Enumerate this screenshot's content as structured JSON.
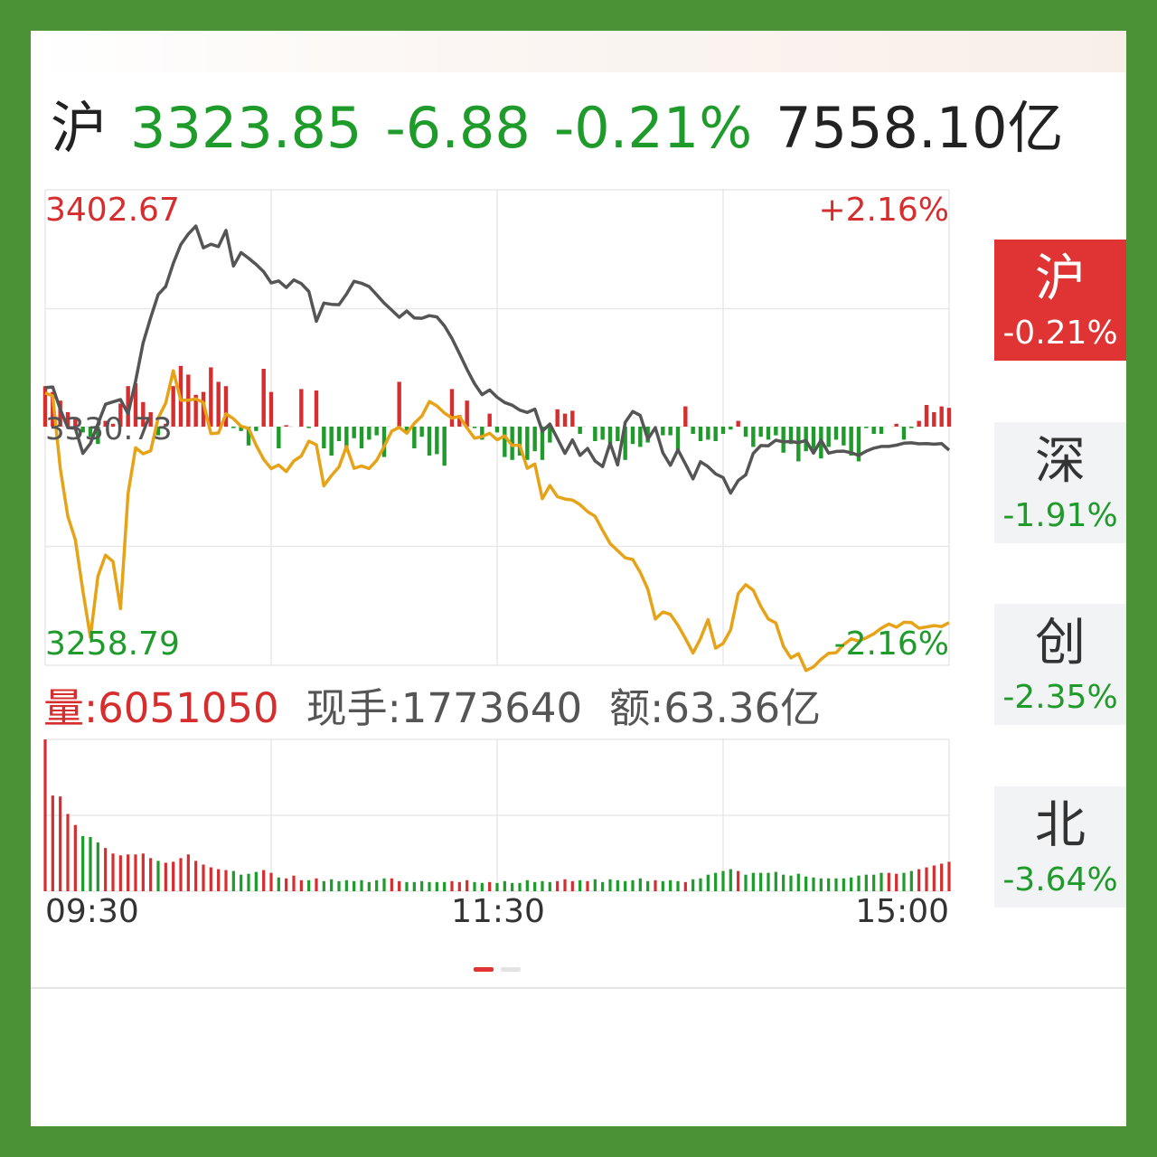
{
  "header": {
    "name": "沪",
    "price": "3323.85",
    "change": "-6.88",
    "change_pct": "-0.21%",
    "amount": "7558.10亿"
  },
  "colors": {
    "up": "#d62e2e",
    "down": "#1e9b2a",
    "index_line": "#555555",
    "avg_line": "#e6a318",
    "grid": "#e8e8e8",
    "active_tab": "#e03333",
    "frame": "#4a9235"
  },
  "volume_line": {
    "vol_label": "量:",
    "vol_value": "6051050",
    "hand_label": "现手:1773640",
    "amount_label": "额:63.36亿"
  },
  "tabs": [
    {
      "name": "沪",
      "pct": "-0.21%",
      "active": true
    },
    {
      "name": "深",
      "pct": "-1.91%",
      "active": false
    },
    {
      "name": "创",
      "pct": "-2.35%",
      "active": false
    },
    {
      "name": "北",
      "pct": "-3.64%",
      "active": false
    }
  ],
  "chart_data": [
    {
      "type": "line",
      "y_max_label": "3402.67",
      "y_min_label": "3258.79",
      "y_ref_label": "3330.73",
      "pct_max_label": "+2.16%",
      "pct_min_label": "-2.16%",
      "ylim": [
        3258.79,
        3402.67
      ],
      "x_ticks": [
        "09:30",
        "11:30",
        "15:00"
      ],
      "grid": true,
      "series": [
        {
          "role": "index",
          "x": [
            0,
            2,
            4,
            6,
            8,
            10,
            12,
            14,
            16,
            18,
            20,
            22,
            24,
            26,
            28,
            30,
            32,
            34,
            36,
            38,
            40,
            42,
            44,
            46,
            48,
            50,
            52,
            54,
            56,
            58,
            60,
            62,
            64,
            66,
            68,
            70,
            72,
            74,
            76,
            78,
            80,
            82,
            84,
            86,
            88,
            90,
            92,
            94,
            96,
            98,
            100,
            102,
            104,
            106,
            108,
            110,
            112,
            114,
            116,
            118,
            120,
            122,
            124,
            126,
            128,
            130,
            132,
            134,
            136,
            138,
            140,
            142,
            144,
            146,
            148,
            150,
            152,
            154,
            156,
            158,
            160,
            162,
            164,
            166,
            168,
            170,
            172,
            174,
            176,
            178,
            180,
            182,
            184,
            186,
            188,
            190,
            192,
            194,
            196,
            198,
            200,
            202,
            204,
            206,
            208,
            210,
            212,
            214,
            216,
            218,
            220,
            222,
            224,
            226,
            228,
            230,
            232,
            234,
            236,
            238,
            240
          ],
          "values": [
            3342.8,
            3343.0,
            3336.2,
            3330.7,
            3330.5,
            3322.9,
            3325.9,
            3331.8,
            3337.8,
            3338.5,
            3339.2,
            3334.9,
            3344.8,
            3356.3,
            3364.0,
            3371.0,
            3373.4,
            3380.4,
            3386.1,
            3389.3,
            3391.7,
            3385.1,
            3386.2,
            3385.5,
            3390.4,
            3379.6,
            3383.7,
            3382.0,
            3380.1,
            3377.9,
            3374.5,
            3375.1,
            3373.1,
            3375.4,
            3374.3,
            3371.9,
            3362.9,
            3368.4,
            3368.0,
            3367.9,
            3371.1,
            3375.0,
            3374.4,
            3373.4,
            3370.9,
            3368.4,
            3366.3,
            3364.1,
            3366.0,
            3363.9,
            3363.8,
            3364.6,
            3364.2,
            3361.5,
            3357.7,
            3353.1,
            3348.3,
            3344.0,
            3340.7,
            3342.1,
            3339.9,
            3338.3,
            3337.5,
            3336.0,
            3335.3,
            3336.3,
            3329.6,
            3331.8,
            3327.4,
            3322.9,
            3327.0,
            3322.3,
            3324.4,
            3320.6,
            3318.9,
            3326.0,
            3319.4,
            3332.3,
            3335.6,
            3334.4,
            3327.2,
            3330.7,
            3323.1,
            3319.3,
            3324.0,
            3319.7,
            3315.2,
            3320.4,
            3318.9,
            3316.7,
            3315.6,
            3310.9,
            3314.7,
            3316.4,
            3322.9,
            3325.3,
            3325.2,
            3326.9,
            3326.4,
            3326.5,
            3326.2,
            3326.8,
            3323.0,
            3326.9,
            3323.0,
            3323.5,
            3323.6,
            3323.1,
            3322.3,
            3323.6,
            3324.5,
            3325.0,
            3325.0,
            3325.4,
            3326.0,
            3326.1,
            3325.8,
            3325.9,
            3325.7,
            3325.9,
            3323.9
          ]
        },
        {
          "role": "average",
          "x": [
            0,
            2,
            4,
            6,
            8,
            10,
            12,
            14,
            16,
            18,
            20,
            22,
            24,
            26,
            28,
            30,
            32,
            34,
            36,
            38,
            40,
            42,
            44,
            46,
            48,
            50,
            52,
            54,
            56,
            58,
            60,
            62,
            64,
            66,
            68,
            70,
            72,
            74,
            76,
            78,
            80,
            82,
            84,
            86,
            88,
            90,
            92,
            94,
            96,
            98,
            100,
            102,
            104,
            106,
            108,
            110,
            112,
            114,
            116,
            118,
            120,
            122,
            124,
            126,
            128,
            130,
            132,
            134,
            136,
            138,
            140,
            142,
            144,
            146,
            148,
            150,
            152,
            154,
            156,
            158,
            160,
            162,
            164,
            166,
            168,
            170,
            172,
            174,
            176,
            178,
            180,
            182,
            184,
            186,
            188,
            190,
            192,
            194,
            196,
            198,
            200,
            202,
            204,
            206,
            208,
            210,
            212,
            214,
            216,
            218,
            220,
            222,
            224,
            226,
            228,
            230,
            232,
            234,
            236,
            238,
            240
          ],
          "values": [
            3341.2,
            3340.3,
            3318.3,
            3303.9,
            3296.8,
            3281.3,
            3267.3,
            3285.7,
            3292.1,
            3290.2,
            3275.9,
            3310.8,
            3324.6,
            3322.8,
            3323.7,
            3333.6,
            3338.1,
            3347.9,
            3339.0,
            3339.0,
            3339.4,
            3338.3,
            3328.9,
            3329.1,
            3334.9,
            3333.4,
            3331.1,
            3330.5,
            3325.4,
            3321.1,
            3318.3,
            3319.4,
            3317.4,
            3320.6,
            3322.1,
            3326.6,
            3325.5,
            3313.1,
            3316.2,
            3318.8,
            3325.0,
            3318.4,
            3319.1,
            3318.3,
            3320.8,
            3325.0,
            3329.6,
            3330.8,
            3329.0,
            3332.0,
            3334.2,
            3338.6,
            3337.3,
            3335.1,
            3333.6,
            3334.1,
            3330.6,
            3327.5,
            3328.0,
            3329.0,
            3327.0,
            3328.2,
            3325.3,
            3325.4,
            3318.4,
            3319.7,
            3309.2,
            3313.2,
            3309.8,
            3309.1,
            3308.8,
            3307.4,
            3305.3,
            3303.9,
            3299.6,
            3295.6,
            3293.5,
            3291.3,
            3290.8,
            3286.9,
            3281.8,
            3272.8,
            3274.9,
            3274.2,
            3270.9,
            3266.9,
            3262.5,
            3266.9,
            3272.6,
            3264.0,
            3265.4,
            3269.5,
            3280.5,
            3283.2,
            3281.5,
            3276.6,
            3272.8,
            3271.6,
            3264.5,
            3261.0,
            3262.3,
            3257.2,
            3258.3,
            3260.6,
            3262.4,
            3262.6,
            3265.0,
            3266.8,
            3266.1,
            3267.1,
            3268.3,
            3270.0,
            3271.3,
            3270.3,
            3271.8,
            3271.7,
            3270.0,
            3270.4,
            3270.8,
            3270.5,
            3271.7
          ]
        }
      ]
    },
    {
      "type": "bar",
      "role": "flow",
      "x": [
        0,
        2,
        4,
        6,
        8,
        10,
        12,
        14,
        16,
        18,
        20,
        22,
        24,
        26,
        28,
        30,
        32,
        34,
        36,
        38,
        40,
        42,
        44,
        46,
        48,
        50,
        52,
        54,
        56,
        58,
        60,
        62,
        64,
        66,
        68,
        70,
        72,
        74,
        76,
        78,
        80,
        82,
        84,
        86,
        88,
        90,
        92,
        94,
        96,
        98,
        100,
        102,
        104,
        106,
        108,
        110,
        112,
        114,
        116,
        118,
        120,
        122,
        124,
        126,
        128,
        130,
        132,
        134,
        136,
        138,
        140,
        142,
        144,
        146,
        148,
        150,
        152,
        154,
        156,
        158,
        160,
        162,
        164,
        166,
        168,
        170,
        172,
        174,
        176,
        178,
        180,
        182,
        184,
        186,
        188,
        190,
        192,
        194,
        196,
        198,
        200,
        202,
        204,
        206,
        208,
        210,
        212,
        214,
        216,
        218,
        220,
        222,
        224,
        226,
        228,
        230,
        232,
        234,
        236,
        238,
        240
      ],
      "values": [
        28,
        24,
        18,
        10,
        6,
        -4,
        -7,
        -12,
        4,
        2,
        16,
        28,
        30,
        17,
        10,
        -6,
        2,
        28,
        42,
        36,
        22,
        24,
        41,
        31,
        28,
        -1,
        -3,
        -13,
        -3,
        40,
        24,
        -15,
        1,
        0,
        26,
        -1,
        25,
        -15,
        -20,
        -10,
        -15,
        -8,
        -15,
        -9,
        -6,
        -21,
        0,
        31,
        -5,
        -15,
        -7,
        -20,
        -19,
        -27,
        26,
        8,
        18,
        -1,
        -9,
        9,
        -4,
        -21,
        -23,
        -20,
        -23,
        -17,
        -23,
        -11,
        12,
        9,
        11,
        -5,
        0,
        -10,
        -9,
        -12,
        -10,
        -23,
        -12,
        -14,
        -11,
        0,
        -6,
        -6,
        -16,
        14,
        -5,
        -10,
        -9,
        -10,
        -5,
        -2,
        4,
        -7,
        -14,
        -7,
        -9,
        -6,
        -18,
        -12,
        -24,
        -17,
        -18,
        -22,
        -14,
        -9,
        -13,
        -20,
        -24,
        -1,
        -5,
        -5,
        0,
        2,
        -9,
        -1,
        4,
        15,
        10,
        14,
        13
      ]
    },
    {
      "type": "bar",
      "role": "volume",
      "x": [
        0,
        2,
        4,
        6,
        8,
        10,
        12,
        14,
        16,
        18,
        20,
        22,
        24,
        26,
        28,
        30,
        32,
        34,
        36,
        38,
        40,
        42,
        44,
        46,
        48,
        50,
        52,
        54,
        56,
        58,
        60,
        62,
        64,
        66,
        68,
        70,
        72,
        74,
        76,
        78,
        80,
        82,
        84,
        86,
        88,
        90,
        92,
        94,
        96,
        98,
        100,
        102,
        104,
        106,
        108,
        110,
        112,
        114,
        116,
        118,
        120,
        122,
        124,
        126,
        128,
        130,
        132,
        134,
        136,
        138,
        140,
        142,
        144,
        146,
        148,
        150,
        152,
        154,
        156,
        158,
        160,
        162,
        164,
        166,
        168,
        170,
        172,
        174,
        176,
        178,
        180,
        182,
        184,
        186,
        188,
        190,
        192,
        194,
        196,
        198,
        200,
        202,
        204,
        206,
        208,
        210,
        212,
        214,
        216,
        218,
        220,
        222,
        224,
        226,
        228,
        230,
        232,
        234,
        236,
        238,
        240
      ],
      "values": [
        165,
        104,
        103,
        84,
        72,
        60,
        59,
        53,
        47,
        41,
        39,
        40,
        40,
        41,
        36,
        33,
        31,
        32,
        36,
        40,
        33,
        29,
        26,
        24,
        23,
        22,
        18,
        19,
        21,
        23,
        20,
        15,
        14,
        17,
        12,
        12,
        14,
        11,
        13,
        11,
        12,
        11,
        12,
        10,
        12,
        14,
        14,
        11,
        10,
        10,
        11,
        10,
        10,
        10,
        11,
        10,
        12,
        10,
        9,
        10,
        9,
        11,
        9,
        9,
        12,
        10,
        11,
        10,
        11,
        13,
        11,
        12,
        11,
        13,
        10,
        13,
        12,
        11,
        12,
        14,
        11,
        12,
        11,
        12,
        11,
        10,
        13,
        14,
        18,
        20,
        22,
        24,
        22,
        18,
        20,
        20,
        20,
        21,
        18,
        17,
        19,
        16,
        15,
        14,
        14,
        14,
        14,
        15,
        17,
        18,
        18,
        20,
        20,
        19,
        20,
        22,
        24,
        26,
        28,
        30,
        32
      ],
      "ylim": [
        0,
        165
      ]
    }
  ]
}
